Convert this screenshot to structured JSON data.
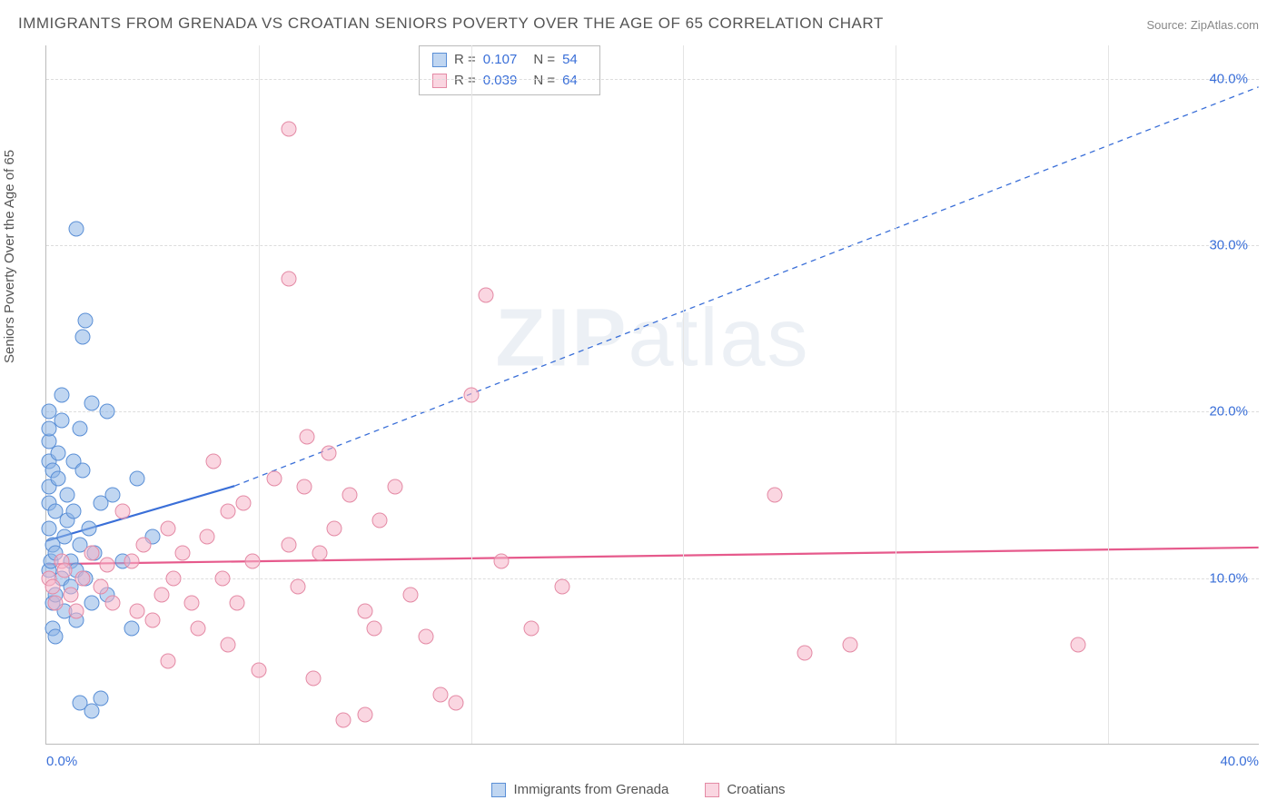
{
  "title": "IMMIGRANTS FROM GRENADA VS CROATIAN SENIORS POVERTY OVER THE AGE OF 65 CORRELATION CHART",
  "source": "Source: ZipAtlas.com",
  "ylabel": "Seniors Poverty Over the Age of 65",
  "watermark_bold": "ZIP",
  "watermark_thin": "atlas",
  "chart": {
    "type": "scatter",
    "xlim": [
      0,
      40
    ],
    "ylim": [
      0,
      42
    ],
    "yticks": [
      {
        "v": 10,
        "label": "10.0%"
      },
      {
        "v": 20,
        "label": "20.0%"
      },
      {
        "v": 30,
        "label": "30.0%"
      },
      {
        "v": 40,
        "label": "40.0%"
      }
    ],
    "xticks": [
      {
        "v": 0,
        "label": "0.0%",
        "cls": "left"
      },
      {
        "v": 40,
        "label": "40.0%",
        "cls": "right"
      }
    ],
    "xgrid": [
      7,
      14,
      21,
      28,
      35
    ],
    "background_color": "#ffffff",
    "grid_color": "#dddddd",
    "marker_size": 17,
    "series": [
      {
        "name": "Immigrants from Grenada",
        "color": "#5a8fd6",
        "fill": "rgba(140,180,230,0.55)",
        "cls": "pt-blue",
        "r": "0.107",
        "n": "54",
        "trend": {
          "x1": 0,
          "y1": 12.2,
          "x2": 6.2,
          "y2": 15.5,
          "solid_to_x": 6.2,
          "dash_to_x": 40,
          "dash_to_y": 39.5,
          "stroke_solid": "#3a6fd8",
          "stroke_width": 2.2
        },
        "points": [
          [
            0.1,
            10.5
          ],
          [
            0.15,
            11.0
          ],
          [
            0.1,
            13.0
          ],
          [
            0.1,
            14.5
          ],
          [
            0.1,
            15.5
          ],
          [
            0.1,
            17.0
          ],
          [
            0.1,
            18.2
          ],
          [
            0.1,
            20.0
          ],
          [
            0.1,
            19.0
          ],
          [
            0.2,
            16.5
          ],
          [
            0.2,
            12.0
          ],
          [
            0.2,
            8.5
          ],
          [
            0.2,
            7.0
          ],
          [
            0.3,
            6.5
          ],
          [
            0.3,
            9.0
          ],
          [
            0.3,
            11.5
          ],
          [
            0.3,
            14.0
          ],
          [
            0.4,
            16.0
          ],
          [
            0.4,
            17.5
          ],
          [
            0.5,
            19.5
          ],
          [
            0.5,
            21.0
          ],
          [
            0.5,
            10.0
          ],
          [
            0.6,
            12.5
          ],
          [
            0.6,
            8.0
          ],
          [
            0.7,
            13.5
          ],
          [
            0.7,
            15.0
          ],
          [
            0.8,
            11.0
          ],
          [
            0.8,
            9.5
          ],
          [
            0.9,
            17.0
          ],
          [
            0.9,
            14.0
          ],
          [
            1.0,
            10.5
          ],
          [
            1.0,
            7.5
          ],
          [
            1.1,
            19.0
          ],
          [
            1.1,
            12.0
          ],
          [
            1.2,
            16.5
          ],
          [
            1.3,
            10.0
          ],
          [
            1.4,
            13.0
          ],
          [
            1.5,
            20.5
          ],
          [
            1.5,
            8.5
          ],
          [
            1.6,
            11.5
          ],
          [
            1.8,
            14.5
          ],
          [
            2.0,
            20.0
          ],
          [
            2.0,
            9.0
          ],
          [
            2.2,
            15.0
          ],
          [
            2.5,
            11.0
          ],
          [
            2.8,
            7.0
          ],
          [
            3.0,
            16.0
          ],
          [
            3.5,
            12.5
          ],
          [
            1.0,
            31.0
          ],
          [
            1.2,
            24.5
          ],
          [
            1.3,
            25.5
          ],
          [
            1.1,
            2.5
          ],
          [
            1.5,
            2.0
          ],
          [
            1.8,
            2.8
          ]
        ]
      },
      {
        "name": "Croatians",
        "color": "#e65a8c",
        "fill": "rgba(245,180,200,0.55)",
        "cls": "pt-pink",
        "r": "0.039",
        "n": "64",
        "trend": {
          "x1": 0,
          "y1": 10.8,
          "x2": 40,
          "y2": 11.8,
          "stroke_solid": "#e65a8c",
          "stroke_width": 2.2
        },
        "points": [
          [
            0.1,
            10.0
          ],
          [
            0.2,
            9.5
          ],
          [
            0.3,
            8.5
          ],
          [
            0.5,
            11.0
          ],
          [
            0.6,
            10.5
          ],
          [
            0.8,
            9.0
          ],
          [
            1.0,
            8.0
          ],
          [
            1.2,
            10.0
          ],
          [
            1.5,
            11.5
          ],
          [
            1.8,
            9.5
          ],
          [
            2.0,
            10.8
          ],
          [
            2.2,
            8.5
          ],
          [
            2.5,
            14.0
          ],
          [
            2.8,
            11.0
          ],
          [
            3.0,
            8.0
          ],
          [
            3.2,
            12.0
          ],
          [
            3.5,
            7.5
          ],
          [
            3.8,
            9.0
          ],
          [
            4.0,
            13.0
          ],
          [
            4.2,
            10.0
          ],
          [
            4.5,
            11.5
          ],
          [
            4.8,
            8.5
          ],
          [
            5.0,
            7.0
          ],
          [
            5.3,
            12.5
          ],
          [
            5.5,
            17.0
          ],
          [
            5.8,
            10.0
          ],
          [
            6.0,
            6.0
          ],
          [
            6.3,
            8.5
          ],
          [
            6.5,
            14.5
          ],
          [
            6.8,
            11.0
          ],
          [
            7.0,
            4.5
          ],
          [
            7.5,
            16.0
          ],
          [
            8.0,
            12.0
          ],
          [
            8.0,
            28.0
          ],
          [
            8.0,
            37.0
          ],
          [
            8.3,
            9.5
          ],
          [
            8.5,
            15.5
          ],
          [
            8.6,
            18.5
          ],
          [
            8.8,
            4.0
          ],
          [
            9.0,
            11.5
          ],
          [
            9.3,
            17.5
          ],
          [
            9.5,
            13.0
          ],
          [
            10.0,
            15.0
          ],
          [
            10.5,
            8.0
          ],
          [
            10.8,
            7.0
          ],
          [
            11.0,
            13.5
          ],
          [
            11.5,
            15.5
          ],
          [
            12.0,
            9.0
          ],
          [
            12.5,
            6.5
          ],
          [
            13.0,
            3.0
          ],
          [
            13.5,
            2.5
          ],
          [
            14.0,
            21.0
          ],
          [
            14.5,
            27.0
          ],
          [
            15.0,
            11.0
          ],
          [
            16.0,
            7.0
          ],
          [
            17.0,
            9.5
          ],
          [
            24.0,
            15.0
          ],
          [
            25.0,
            5.5
          ],
          [
            26.5,
            6.0
          ],
          [
            34.0,
            6.0
          ],
          [
            9.8,
            1.5
          ],
          [
            10.5,
            1.8
          ],
          [
            4.0,
            5.0
          ],
          [
            6.0,
            14.0
          ]
        ]
      }
    ]
  },
  "legend": {
    "items": [
      {
        "label": "Immigrants from Grenada",
        "cls": "sw-blue"
      },
      {
        "label": "Croatians",
        "cls": "sw-pink"
      }
    ]
  }
}
